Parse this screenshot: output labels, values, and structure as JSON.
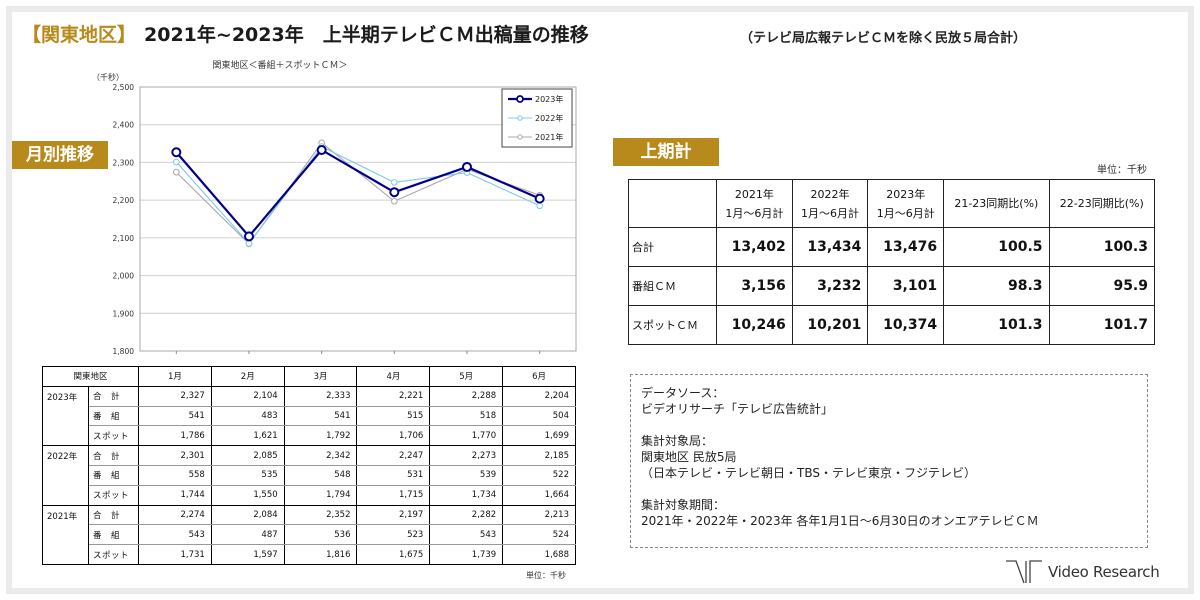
{
  "title": {
    "region": "【関東地区】",
    "main": "2021年~2023年　上半期テレビＣＭ出稿量の推移",
    "note": "（テレビ局広報テレビＣＭを除く民放５局合計）"
  },
  "labels": {
    "monthly": "月別推移",
    "half": "上期計"
  },
  "chart_data": {
    "type": "line",
    "title": "関東地区＜番組＋スポットＣＭ＞",
    "ylabel": "（千秒）",
    "ylim": [
      1800,
      2500
    ],
    "yticks": [
      "1,800",
      "1,900",
      "2,000",
      "2,100",
      "2,200",
      "2,300",
      "2,400",
      "2,500"
    ],
    "grid": true,
    "legend": "top-right",
    "series": [
      {
        "name": "2023年",
        "color": "#00008b",
        "values": [
          2327,
          2104,
          2333,
          2221,
          2288,
          2204
        ]
      },
      {
        "name": "2022年",
        "color": "#7fc8e6",
        "values": [
          2301,
          2085,
          2342,
          2247,
          2273,
          2185
        ]
      },
      {
        "name": "2021年",
        "color": "#a8a8a8",
        "values": [
          2274,
          2084,
          2352,
          2197,
          2282,
          2213
        ]
      }
    ]
  },
  "monthly_table": {
    "corner": "関東地区",
    "months": [
      "1月",
      "2月",
      "3月",
      "4月",
      "5月",
      "6月"
    ],
    "groups": [
      {
        "year": "2023年",
        "rows": [
          {
            "label": "合　計",
            "values": [
              "2,327",
              "2,104",
              "2,333",
              "2,221",
              "2,288",
              "2,204"
            ]
          },
          {
            "label": "番　組",
            "values": [
              "541",
              "483",
              "541",
              "515",
              "518",
              "504"
            ]
          },
          {
            "label": "スポット",
            "values": [
              "1,786",
              "1,621",
              "1,792",
              "1,706",
              "1,770",
              "1,699"
            ]
          }
        ]
      },
      {
        "year": "2022年",
        "rows": [
          {
            "label": "合　計",
            "values": [
              "2,301",
              "2,085",
              "2,342",
              "2,247",
              "2,273",
              "2,185"
            ]
          },
          {
            "label": "番　組",
            "values": [
              "558",
              "535",
              "548",
              "531",
              "539",
              "522"
            ]
          },
          {
            "label": "スポット",
            "values": [
              "1,744",
              "1,550",
              "1,794",
              "1,715",
              "1,734",
              "1,664"
            ]
          }
        ]
      },
      {
        "year": "2021年",
        "rows": [
          {
            "label": "合　計",
            "values": [
              "2,274",
              "2,084",
              "2,352",
              "2,197",
              "2,282",
              "2,213"
            ]
          },
          {
            "label": "番　組",
            "values": [
              "543",
              "487",
              "536",
              "523",
              "543",
              "524"
            ]
          },
          {
            "label": "スポット",
            "values": [
              "1,731",
              "1,597",
              "1,816",
              "1,675",
              "1,739",
              "1,688"
            ]
          }
        ]
      }
    ],
    "unit": "単位：千秒"
  },
  "half_table": {
    "unit": "単位：千秒",
    "headers": [
      {
        "line1": "2021年",
        "line2": "1月～6月計"
      },
      {
        "line1": "2022年",
        "line2": "1月～6月計"
      },
      {
        "line1": "2023年",
        "line2": "1月～6月計"
      },
      {
        "line1": "21-23同期比(%)",
        "line2": ""
      },
      {
        "line1": "22-23同期比(%)",
        "line2": ""
      }
    ],
    "rows": [
      {
        "label": "合計",
        "values": [
          "13,402",
          "13,434",
          "13,476",
          "100.5",
          "100.3"
        ]
      },
      {
        "label": "番組ＣＭ",
        "values": [
          "3,156",
          "3,232",
          "3,101",
          "98.3",
          "95.9"
        ]
      },
      {
        "label": "スポットＣＭ",
        "values": [
          "10,246",
          "10,201",
          "10,374",
          "101.3",
          "101.7"
        ]
      }
    ]
  },
  "source": {
    "lines": [
      "データソース：",
      "ビデオリサーチ「テレビ広告統計」",
      "",
      "集計対象局：",
      "関東地区 民放5局",
      "（日本テレビ・テレビ朝日・TBS・テレビ東京・フジテレビ）",
      "",
      "集計対象期間：",
      "2021年・2022年・2023年 各年1月1日～6月30日のオンエアテレビＣＭ"
    ]
  },
  "logo": {
    "text": "Video Research"
  }
}
